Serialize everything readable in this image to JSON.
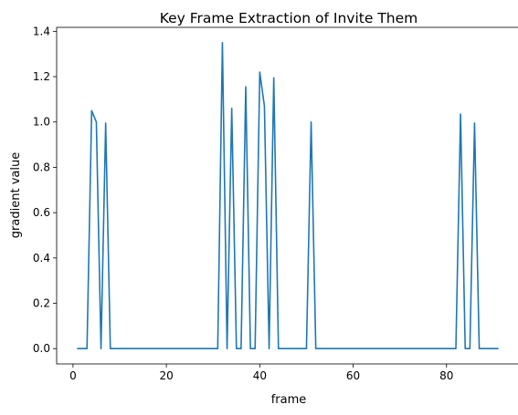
{
  "chart_data": {
    "type": "line",
    "title": "Key Frame Extraction of Invite Them",
    "xlabel": "frame",
    "ylabel": "gradient value",
    "xlim": [
      -3.5,
      95.5
    ],
    "ylim": [
      -0.0675,
      1.4175
    ],
    "x_ticks": [
      0,
      20,
      40,
      60,
      80
    ],
    "y_ticks": [
      0.0,
      0.2,
      0.4,
      0.6,
      0.8,
      1.0,
      1.2,
      1.4
    ],
    "x_tick_labels": [
      "0",
      "20",
      "40",
      "60",
      "80"
    ],
    "y_tick_labels": [
      "0.0",
      "0.2",
      "0.4",
      "0.6",
      "0.8",
      "1.0",
      "1.2",
      "1.4"
    ],
    "grid": false,
    "colors": {
      "line": "#1f77b4"
    },
    "series": [
      {
        "x": [
          1,
          2,
          3,
          4,
          5,
          6,
          7,
          8,
          9,
          10,
          11,
          12,
          13,
          14,
          15,
          16,
          17,
          18,
          19,
          20,
          21,
          22,
          23,
          24,
          25,
          26,
          27,
          28,
          29,
          30,
          31,
          32,
          33,
          34,
          35,
          36,
          37,
          38,
          39,
          40,
          41,
          42,
          43,
          44,
          45,
          46,
          47,
          48,
          49,
          50,
          51,
          52,
          53,
          54,
          55,
          56,
          57,
          58,
          59,
          60,
          61,
          62,
          63,
          64,
          65,
          66,
          67,
          68,
          69,
          70,
          71,
          72,
          73,
          74,
          75,
          76,
          77,
          78,
          79,
          80,
          81,
          82,
          83,
          84,
          85,
          86,
          87,
          88,
          89,
          90,
          91
        ],
        "values": [
          0,
          0,
          0,
          1.05,
          1.0,
          0,
          0.995,
          0,
          0,
          0,
          0,
          0,
          0,
          0,
          0,
          0,
          0,
          0,
          0,
          0,
          0,
          0,
          0,
          0,
          0,
          0,
          0,
          0,
          0,
          0,
          0,
          1.35,
          0,
          1.06,
          0,
          0,
          1.155,
          0,
          0,
          1.22,
          1.07,
          0,
          1.195,
          0,
          0,
          0,
          0,
          0,
          0,
          0,
          1.0,
          0,
          0,
          0,
          0,
          0,
          0,
          0,
          0,
          0,
          0,
          0,
          0,
          0,
          0,
          0,
          0,
          0,
          0,
          0,
          0,
          0,
          0,
          0,
          0,
          0,
          0,
          0,
          0,
          0,
          0,
          0,
          1.035,
          0,
          0,
          0.995,
          0,
          0,
          0,
          0,
          0
        ]
      }
    ]
  }
}
